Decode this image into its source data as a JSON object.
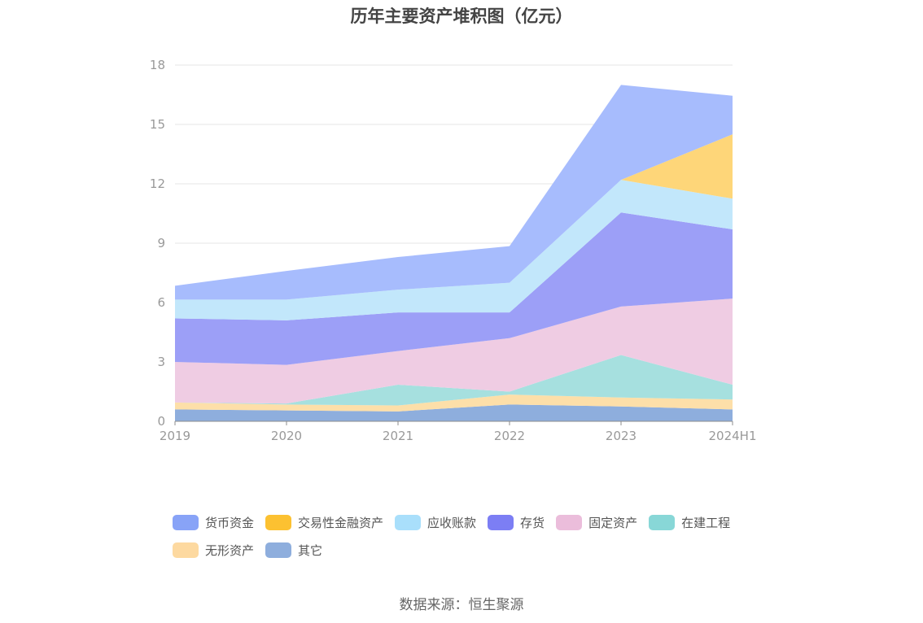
{
  "chart_data": {
    "type": "area",
    "stacked": true,
    "title": "历年主要资产堆积图（亿元）",
    "x": [
      "2019",
      "2020",
      "2021",
      "2022",
      "2023",
      "2024H1"
    ],
    "ylim": [
      0,
      18
    ],
    "yticks": [
      "0",
      "3",
      "6",
      "9",
      "12",
      "15",
      "18"
    ],
    "grid": true,
    "legend_position": "bottom",
    "series": [
      {
        "name": "其它",
        "color": "#8eaedd",
        "values": [
          0.6,
          0.55,
          0.5,
          0.85,
          0.75,
          0.6
        ]
      },
      {
        "name": "无形资产",
        "color": "#fddfa9",
        "values": [
          0.35,
          0.3,
          0.3,
          0.5,
          0.45,
          0.5
        ]
      },
      {
        "name": "在建工程",
        "color": "#a6e0df",
        "values": [
          0.0,
          0.05,
          1.05,
          0.15,
          2.15,
          0.75
        ]
      },
      {
        "name": "固定资产",
        "color": "#efcce3",
        "values": [
          2.05,
          1.95,
          1.7,
          2.7,
          2.45,
          4.35
        ]
      },
      {
        "name": "存货",
        "color": "#9c9ff7",
        "values": [
          2.2,
          2.25,
          1.95,
          1.3,
          4.75,
          3.5
        ]
      },
      {
        "name": "应收账款",
        "color": "#c2e7fb",
        "values": [
          0.95,
          1.05,
          1.15,
          1.5,
          1.65,
          1.55
        ]
      },
      {
        "name": "交易性金融资产",
        "color": "#fed679",
        "values": [
          0.0,
          0.0,
          0.0,
          0.0,
          0.0,
          3.25
        ]
      },
      {
        "name": "货币资金",
        "color": "#a7bcfd",
        "values": [
          0.7,
          1.45,
          1.65,
          1.85,
          4.8,
          1.95
        ]
      }
    ]
  },
  "legend": [
    {
      "label": "货币资金",
      "color": "#88a3f7"
    },
    {
      "label": "交易性金融资产",
      "color": "#fcc131"
    },
    {
      "label": "应收账款",
      "color": "#a9dffb"
    },
    {
      "label": "存货",
      "color": "#7c7ef4"
    },
    {
      "label": "固定资产",
      "color": "#ebbddb"
    },
    {
      "label": "在建工程",
      "color": "#88d7d7"
    },
    {
      "label": "无形资产",
      "color": "#fdd9a0"
    },
    {
      "label": "其它",
      "color": "#8eaedd"
    }
  ],
  "source": "数据来源：恒生聚源"
}
